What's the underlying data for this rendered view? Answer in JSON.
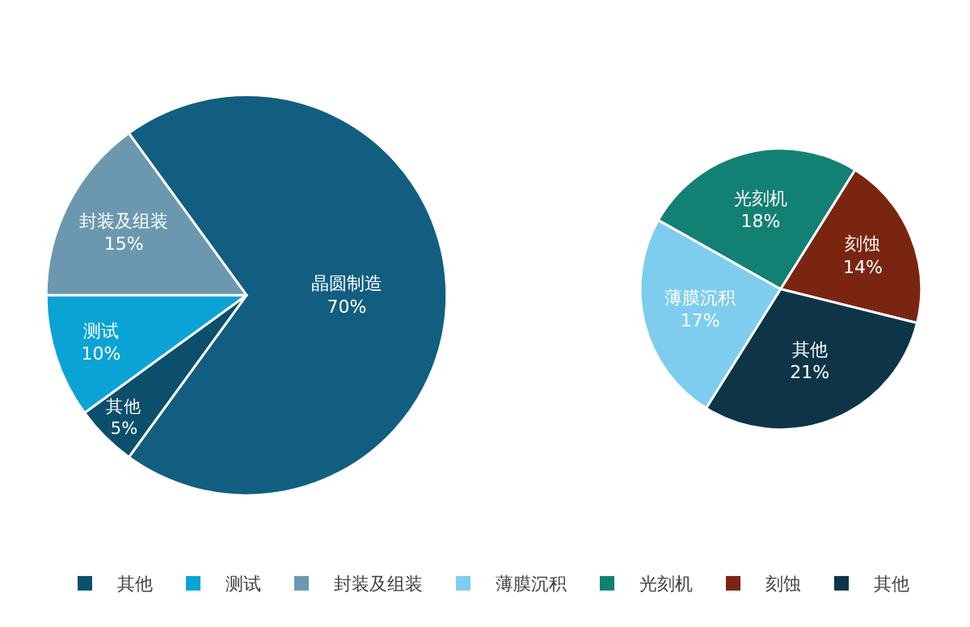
{
  "chart_data": [
    {
      "type": "pie",
      "categories": [
        "晶圆制造",
        "其他",
        "测试",
        "封装及组装"
      ],
      "values": [
        70,
        5,
        10,
        15
      ],
      "value_labels": [
        "70%",
        "5%",
        "10%",
        "15%"
      ],
      "colors": [
        "#115e80",
        "#0b4f6c",
        "#0aa3d6",
        "#6b98ae"
      ],
      "legend": "bottom"
    },
    {
      "type": "pie",
      "categories": [
        "薄膜沉积",
        "光刻机",
        "刻蚀",
        "其他"
      ],
      "values": [
        17,
        18,
        14,
        21
      ],
      "value_labels": [
        "17%",
        "18%",
        "14%",
        "21%"
      ],
      "colors": [
        "#7fcdee",
        "#138074",
        "#7a2510",
        "#0d3547"
      ],
      "legend": "bottom"
    }
  ]
}
